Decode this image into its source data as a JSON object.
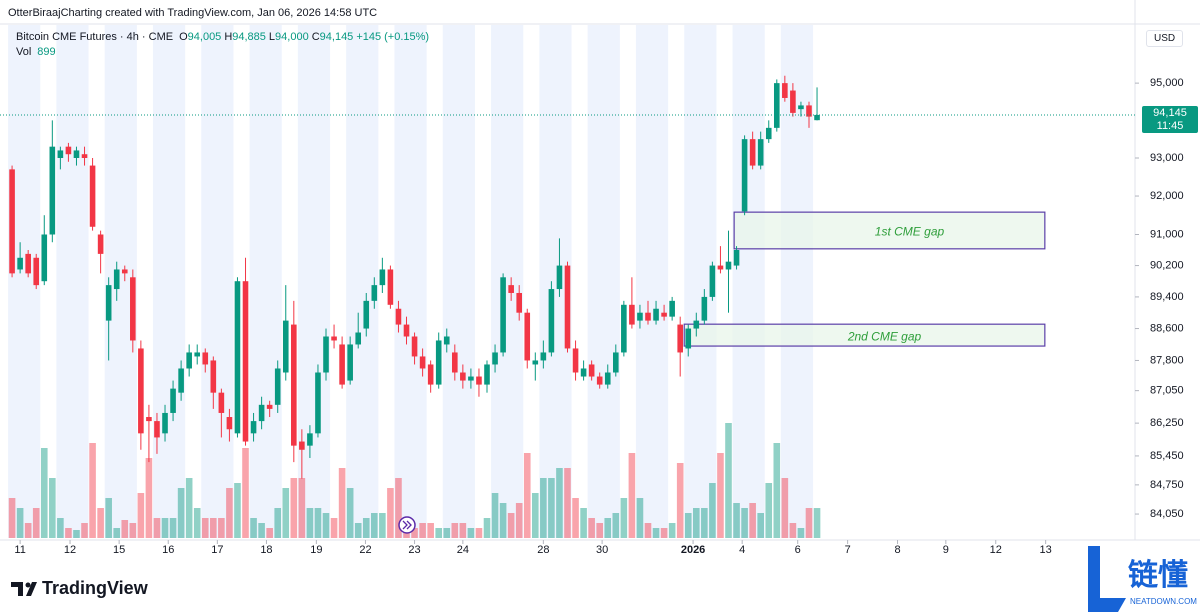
{
  "header": {
    "attribution": "OtterBiraajCharting created with TradingView.com, Jan 06, 2026 14:58 UTC",
    "logo": "TradingView"
  },
  "watermark": {
    "title": "链懂",
    "subtitle": "NEATDOWN.COM"
  },
  "chart_data": {
    "type": "candlestick",
    "title": "Bitcoin CME Futures · 4h · CME",
    "currency": "USD",
    "legend": [
      {
        "key": "O",
        "value": "94,005"
      },
      {
        "key": "H",
        "value": "94,885"
      },
      {
        "key": "L",
        "value": "94,000"
      },
      {
        "key": "C",
        "value": "94,145"
      }
    ],
    "change": "+145 (+0.15%)",
    "open": [
      92700,
      90100,
      90500,
      90400,
      89800,
      91000,
      93000,
      93300,
      93000,
      93100,
      92800,
      91000,
      88800,
      89600,
      90100,
      89900,
      88100,
      86400,
      86300,
      86000,
      86500,
      87000,
      87600,
      87900,
      88000,
      87800,
      87000,
      86400,
      86000,
      89800,
      86000,
      86300,
      86700,
      86700,
      87500,
      88700,
      85800,
      85700,
      86000,
      87500,
      88400,
      88200,
      87300,
      88200,
      88600,
      89300,
      89700,
      90100,
      89100,
      88700,
      88400,
      87900,
      87700,
      87200,
      88200,
      88000,
      87500,
      87300,
      87400,
      87200,
      87700,
      88000,
      89700,
      89500,
      89000,
      87700,
      87800,
      88000,
      89600,
      90200,
      88100,
      87400,
      87700,
      87400,
      87200,
      87500,
      88000,
      89200,
      88800,
      89000,
      88800,
      89000,
      88900,
      88700,
      88100,
      88600,
      88800,
      89400,
      90200,
      90100,
      90200,
      91600,
      93500,
      92800,
      93500,
      93800,
      95000,
      94800,
      94300,
      94400,
      94005
    ],
    "high": [
      92800,
      90800,
      90600,
      90500,
      91500,
      94000,
      93300,
      93400,
      93300,
      93300,
      93000,
      91100,
      89900,
      90300,
      90200,
      90100,
      88300,
      86700,
      86500,
      86700,
      87300,
      87800,
      88200,
      88200,
      88100,
      87900,
      87100,
      86600,
      89900,
      90400,
      86500,
      86900,
      86800,
      87800,
      89700,
      89300,
      86100,
      86200,
      87700,
      88600,
      88700,
      88400,
      88400,
      89000,
      89500,
      89900,
      90400,
      90200,
      89300,
      88900,
      88500,
      88100,
      87800,
      88500,
      88600,
      88200,
      87700,
      87600,
      87600,
      87800,
      88200,
      90000,
      89900,
      89700,
      89100,
      88000,
      88300,
      89800,
      90900,
      90300,
      88300,
      87800,
      87800,
      87500,
      87700,
      88200,
      89300,
      89900,
      89200,
      89300,
      89300,
      89200,
      89400,
      88900,
      88700,
      89000,
      89600,
      90300,
      90700,
      91100,
      90700,
      93600,
      93700,
      93700,
      94000,
      95100,
      95200,
      95000,
      94500,
      94500,
      94885
    ],
    "low": [
      89900,
      90000,
      89900,
      89600,
      89700,
      90800,
      92700,
      92900,
      92800,
      92800,
      91100,
      90000,
      87800,
      89300,
      89800,
      88000,
      85600,
      85300,
      85500,
      85800,
      86300,
      86800,
      87400,
      87700,
      87500,
      86600,
      85900,
      85800,
      85900,
      85700,
      85800,
      86100,
      86400,
      86500,
      87300,
      85300,
      84900,
      85400,
      85900,
      87300,
      88100,
      87100,
      87200,
      88100,
      88400,
      89100,
      89500,
      89100,
      88500,
      88200,
      87700,
      87400,
      87000,
      87100,
      88000,
      87300,
      87100,
      87100,
      86900,
      87000,
      87500,
      87900,
      89300,
      88800,
      87600,
      87300,
      87600,
      87900,
      89400,
      88000,
      87300,
      87300,
      87300,
      87100,
      87100,
      87400,
      87900,
      88600,
      88600,
      88700,
      88700,
      88800,
      88800,
      87400,
      87900,
      88400,
      88700,
      89300,
      90000,
      89000,
      90100,
      91500,
      92700,
      92700,
      93400,
      93700,
      94500,
      94100,
      94100,
      93800,
      94000
    ],
    "close": [
      90000,
      90400,
      90000,
      89700,
      91000,
      93300,
      93200,
      93100,
      93200,
      93000,
      91200,
      90500,
      89700,
      90100,
      90000,
      88300,
      86000,
      86300,
      85900,
      86500,
      87100,
      87600,
      88000,
      88000,
      87700,
      87000,
      86500,
      86100,
      89800,
      85800,
      86300,
      86700,
      86600,
      87600,
      88800,
      85700,
      85600,
      86000,
      87500,
      88400,
      88300,
      87200,
      88200,
      88500,
      89300,
      89700,
      90100,
      89200,
      88700,
      88400,
      87900,
      87600,
      87200,
      88300,
      88400,
      87500,
      87300,
      87400,
      87200,
      87700,
      88000,
      89900,
      89500,
      89000,
      87800,
      87800,
      88000,
      89600,
      90200,
      88100,
      87500,
      87600,
      87400,
      87200,
      87500,
      88000,
      89200,
      88700,
      89000,
      88800,
      89100,
      88900,
      89300,
      88000,
      88600,
      88800,
      89400,
      90200,
      90100,
      90300,
      90600,
      93500,
      92800,
      93500,
      93800,
      95000,
      94600,
      94200,
      94400,
      94100,
      94145
    ],
    "up_color": "#089981",
    "down_color": "#f23645",
    "volume": {
      "name": "Vol",
      "lim": [
        0,
        15300
      ],
      "values": [
        1200,
        900,
        450,
        900,
        2700,
        1800,
        600,
        300,
        240,
        450,
        2850,
        900,
        1200,
        300,
        540,
        450,
        1350,
        2400,
        600,
        600,
        600,
        1500,
        1800,
        900,
        600,
        600,
        600,
        1500,
        1650,
        2700,
        600,
        450,
        300,
        900,
        1500,
        1800,
        1800,
        900,
        900,
        750,
        600,
        2100,
        1500,
        450,
        600,
        750,
        750,
        1500,
        1800,
        450,
        300,
        450,
        450,
        300,
        300,
        450,
        450,
        300,
        300,
        600,
        1350,
        1050,
        750,
        1050,
        2550,
        1350,
        1800,
        1800,
        2100,
        2100,
        1200,
        900,
        600,
        450,
        600,
        750,
        1200,
        2550,
        1200,
        450,
        300,
        300,
        450,
        2250,
        750,
        900,
        900,
        1650,
        2550,
        3450,
        1050,
        900,
        1050,
        750,
        1650,
        2850,
        1800,
        450,
        300,
        900,
        899
      ]
    },
    "ylim": [
      83480,
      96500
    ],
    "log_scale": true,
    "yticks": [
      {
        "value": 95000,
        "label": "95,000"
      },
      {
        "value": 93000,
        "label": "93,000"
      },
      {
        "value": 92000,
        "label": "92,000"
      },
      {
        "value": 91000,
        "label": "91,000"
      },
      {
        "value": 90200,
        "label": "90,200"
      },
      {
        "value": 89400,
        "label": "89,400"
      },
      {
        "value": 88600,
        "label": "88,600"
      },
      {
        "value": 87800,
        "label": "87,800"
      },
      {
        "value": 87050,
        "label": "87,050"
      },
      {
        "value": 86250,
        "label": "86,250"
      },
      {
        "value": 85450,
        "label": "85,450"
      },
      {
        "value": 84750,
        "label": "84,750"
      },
      {
        "value": 84050,
        "label": "84,050"
      }
    ],
    "xlim": [
      -1.5,
      139.5
    ],
    "xticks": [
      {
        "value": 1,
        "label": "11"
      },
      {
        "value": 7.2,
        "label": "12"
      },
      {
        "value": 13.3,
        "label": "15"
      },
      {
        "value": 19.4,
        "label": "16"
      },
      {
        "value": 25.5,
        "label": "17"
      },
      {
        "value": 31.6,
        "label": "18"
      },
      {
        "value": 37.8,
        "label": "19"
      },
      {
        "value": 43.9,
        "label": "22"
      },
      {
        "value": 50,
        "label": "23"
      },
      {
        "value": 56,
        "label": "24"
      },
      {
        "value": 66,
        "label": "28"
      },
      {
        "value": 73.3,
        "label": "30"
      },
      {
        "value": 84.6,
        "label": "2026"
      },
      {
        "value": 90.7,
        "label": "4"
      },
      {
        "value": 97.6,
        "label": "6"
      },
      {
        "value": 103.8,
        "label": "7"
      },
      {
        "value": 110,
        "label": "8"
      },
      {
        "value": 116,
        "label": "9"
      },
      {
        "value": 122.2,
        "label": "12"
      },
      {
        "value": 128.4,
        "label": "13"
      }
    ],
    "last_price": {
      "value": 94145,
      "label": "94,145",
      "countdown": "11:45"
    },
    "annotations": [
      {
        "label": "1st CME gap",
        "x": [
          89.7,
          128.3
        ],
        "y": [
          90630,
          91580
        ]
      },
      {
        "label": "2nd CME gap",
        "x": [
          83.5,
          128.3
        ],
        "y": [
          88160,
          88710
        ]
      }
    ]
  }
}
